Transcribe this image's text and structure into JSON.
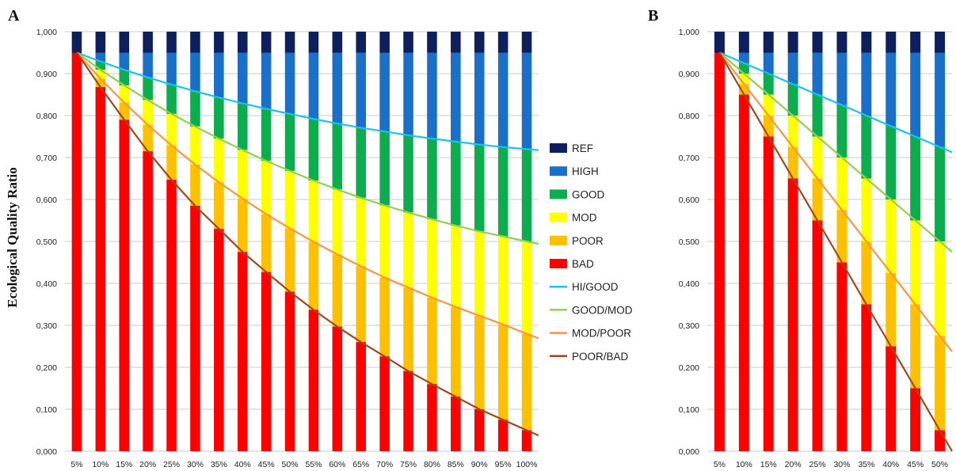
{
  "chart_data": [
    {
      "panel_label": "A",
      "type": "bar",
      "stacked": true,
      "ylabel": "Ecological Quality Ratio",
      "ylim": [
        0,
        1
      ],
      "yticks": [
        "0,000",
        "0,100",
        "0,200",
        "0,300",
        "0,400",
        "0,500",
        "0,600",
        "0,700",
        "0,800",
        "0,900",
        "1,000"
      ],
      "grid": true,
      "categories": [
        "5%",
        "10%",
        "15%",
        "20%",
        "25%",
        "30%",
        "35%",
        "40%",
        "45%",
        "50%",
        "55%",
        "60%",
        "65%",
        "70%",
        "75%",
        "80%",
        "85%",
        "90%",
        "95%",
        "100%"
      ],
      "boundaries": {
        "REF": [
          1,
          1,
          1,
          1,
          1,
          1,
          1,
          1,
          1,
          1,
          1,
          1,
          1,
          1,
          1,
          1,
          1,
          1,
          1,
          1
        ],
        "HIGH": [
          0.95,
          0.95,
          0.95,
          0.95,
          0.95,
          0.95,
          0.95,
          0.95,
          0.95,
          0.95,
          0.95,
          0.95,
          0.95,
          0.95,
          0.95,
          0.95,
          0.95,
          0.95,
          0.95,
          0.95
        ],
        "HI/GOOD": [
          0.95,
          0.929,
          0.909,
          0.891,
          0.874,
          0.858,
          0.843,
          0.829,
          0.816,
          0.804,
          0.792,
          0.781,
          0.771,
          0.762,
          0.753,
          0.745,
          0.738,
          0.731,
          0.725,
          0.72
        ],
        "GOOD/MOD": [
          0.95,
          0.909,
          0.872,
          0.837,
          0.804,
          0.774,
          0.745,
          0.718,
          0.692,
          0.668,
          0.645,
          0.624,
          0.604,
          0.586,
          0.569,
          0.553,
          0.538,
          0.524,
          0.512,
          0.5
        ],
        "MOD/POOR": [
          0.95,
          0.888,
          0.831,
          0.778,
          0.729,
          0.683,
          0.641,
          0.602,
          0.565,
          0.531,
          0.499,
          0.469,
          0.441,
          0.414,
          0.39,
          0.366,
          0.344,
          0.323,
          0.302,
          0.28
        ],
        "POOR/BAD": [
          0.95,
          0.868,
          0.79,
          0.715,
          0.647,
          0.585,
          0.53,
          0.475,
          0.427,
          0.38,
          0.337,
          0.297,
          0.26,
          0.226,
          0.191,
          0.16,
          0.13,
          0.1,
          0.075,
          0.05
        ]
      },
      "series": [
        {
          "name": "REF",
          "color": "#0d1f5c"
        },
        {
          "name": "HIGH",
          "color": "#1a6fc8"
        },
        {
          "name": "GOOD",
          "color": "#0cad4e"
        },
        {
          "name": "MOD",
          "color": "#ffff00"
        },
        {
          "name": "POOR",
          "color": "#ffc000"
        },
        {
          "name": "BAD",
          "color": "#ff0000"
        }
      ],
      "lines": [
        {
          "name": "HI/GOOD",
          "color": "#1ec0ee"
        },
        {
          "name": "GOOD/MOD",
          "color": "#92d050"
        },
        {
          "name": "MOD/POOR",
          "color": "#f79646"
        },
        {
          "name": "POOR/BAD",
          "color": "#a0471a"
        }
      ]
    },
    {
      "panel_label": "B",
      "type": "bar",
      "stacked": true,
      "ylim": [
        0,
        1
      ],
      "yticks": [
        "0,000",
        "0,100",
        "0,200",
        "0,300",
        "0,400",
        "0,500",
        "0,600",
        "0,700",
        "0,800",
        "0,900",
        "1,000"
      ],
      "grid": true,
      "categories": [
        "5%",
        "10%",
        "15%",
        "20%",
        "25%",
        "30%",
        "35%",
        "40%",
        "45%",
        "50%"
      ],
      "boundaries": {
        "REF": [
          1,
          1,
          1,
          1,
          1,
          1,
          1,
          1,
          1,
          1
        ],
        "HIGH": [
          0.95,
          0.95,
          0.95,
          0.95,
          0.95,
          0.95,
          0.95,
          0.95,
          0.95,
          0.95
        ],
        "HI/GOOD": [
          0.95,
          0.925,
          0.9,
          0.875,
          0.85,
          0.825,
          0.8,
          0.775,
          0.75,
          0.725
        ],
        "GOOD/MOD": [
          0.95,
          0.9,
          0.85,
          0.8,
          0.75,
          0.7,
          0.65,
          0.6,
          0.55,
          0.5
        ],
        "MOD/POOR": [
          0.95,
          0.875,
          0.8,
          0.725,
          0.65,
          0.575,
          0.5,
          0.425,
          0.35,
          0.275
        ],
        "POOR/BAD": [
          0.95,
          0.85,
          0.75,
          0.65,
          0.55,
          0.45,
          0.35,
          0.25,
          0.15,
          0.05
        ]
      }
    }
  ],
  "legend": {
    "position": "between-panels",
    "items": [
      {
        "label": "REF",
        "kind": "box",
        "color": "#0d1f5c"
      },
      {
        "label": "HIGH",
        "kind": "box",
        "color": "#1a6fc8"
      },
      {
        "label": "GOOD",
        "kind": "box",
        "color": "#0cad4e"
      },
      {
        "label": "MOD",
        "kind": "box",
        "color": "#ffff00"
      },
      {
        "label": "POOR",
        "kind": "box",
        "color": "#ffc000"
      },
      {
        "label": "BAD",
        "kind": "box",
        "color": "#ff0000"
      },
      {
        "label": "HI/GOOD",
        "kind": "line",
        "color": "#1ec0ee"
      },
      {
        "label": "GOOD/MOD",
        "kind": "line",
        "color": "#92d050"
      },
      {
        "label": "MOD/POOR",
        "kind": "line",
        "color": "#f79646"
      },
      {
        "label": "POOR/BAD",
        "kind": "line",
        "color": "#a0471a"
      }
    ]
  }
}
